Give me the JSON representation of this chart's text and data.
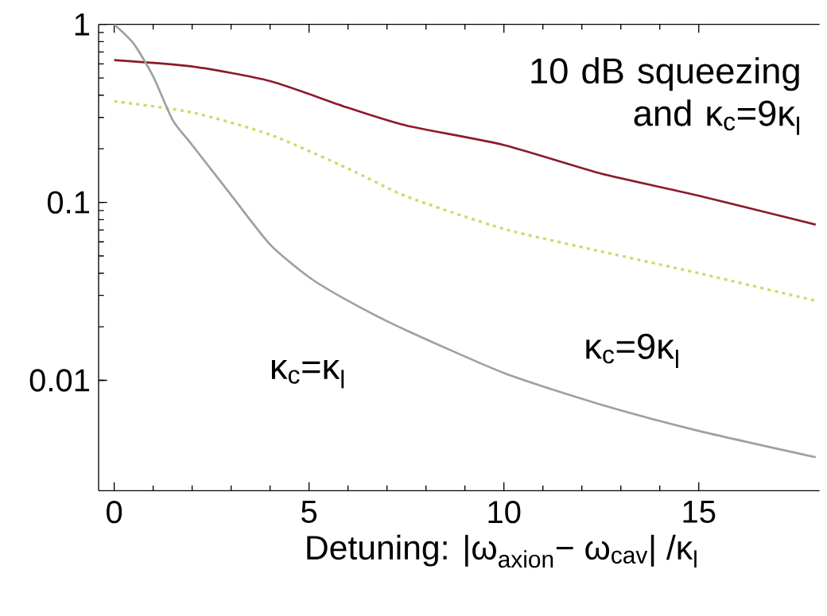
{
  "chart_data": {
    "type": "line",
    "xlabel": "Detuning:  |ω$_{axion}$− ω$_{cav}$| /κ$_{l}$",
    "log": "y",
    "xlim": [
      -0.4,
      18.1
    ],
    "ylim": [
      0.0024,
      1
    ],
    "xticks": [
      0,
      5,
      10,
      15
    ],
    "yticks": [
      0.01,
      0.1,
      1
    ],
    "series": [
      {
        "color": "#8b1a2b",
        "line_style": "solid",
        "x": [
          0,
          2,
          4,
          6,
          7.5,
          10,
          12.5,
          15,
          18
        ],
        "values": [
          0.63,
          0.58,
          0.48,
          0.34,
          0.27,
          0.21,
          0.145,
          0.109,
          0.075
        ]
      },
      {
        "color": "#d6d66a",
        "line_style": "dotted",
        "x": [
          0,
          2,
          4,
          6,
          7.5,
          10,
          12.5,
          15,
          18
        ],
        "values": [
          0.37,
          0.32,
          0.24,
          0.155,
          0.108,
          0.071,
          0.053,
          0.04,
          0.028
        ]
      },
      {
        "color": "#a0a0a0",
        "line_style": "solid",
        "x": [
          0,
          0.5,
          1,
          1.5,
          2,
          3,
          4,
          5,
          6,
          7.3,
          10,
          12.5,
          15,
          18
        ],
        "values": [
          1,
          0.78,
          0.51,
          0.29,
          0.21,
          0.11,
          0.058,
          0.038,
          0.028,
          0.02,
          0.011,
          0.0073,
          0.0052,
          0.0037
        ]
      }
    ],
    "annotations": [
      "10 dB squeezing and κ$_{c}$=9κ$_{l}$",
      "κ$_{c}$=9κ$_{l}$",
      "κ$_{c}$=κ$_{l}$"
    ]
  }
}
